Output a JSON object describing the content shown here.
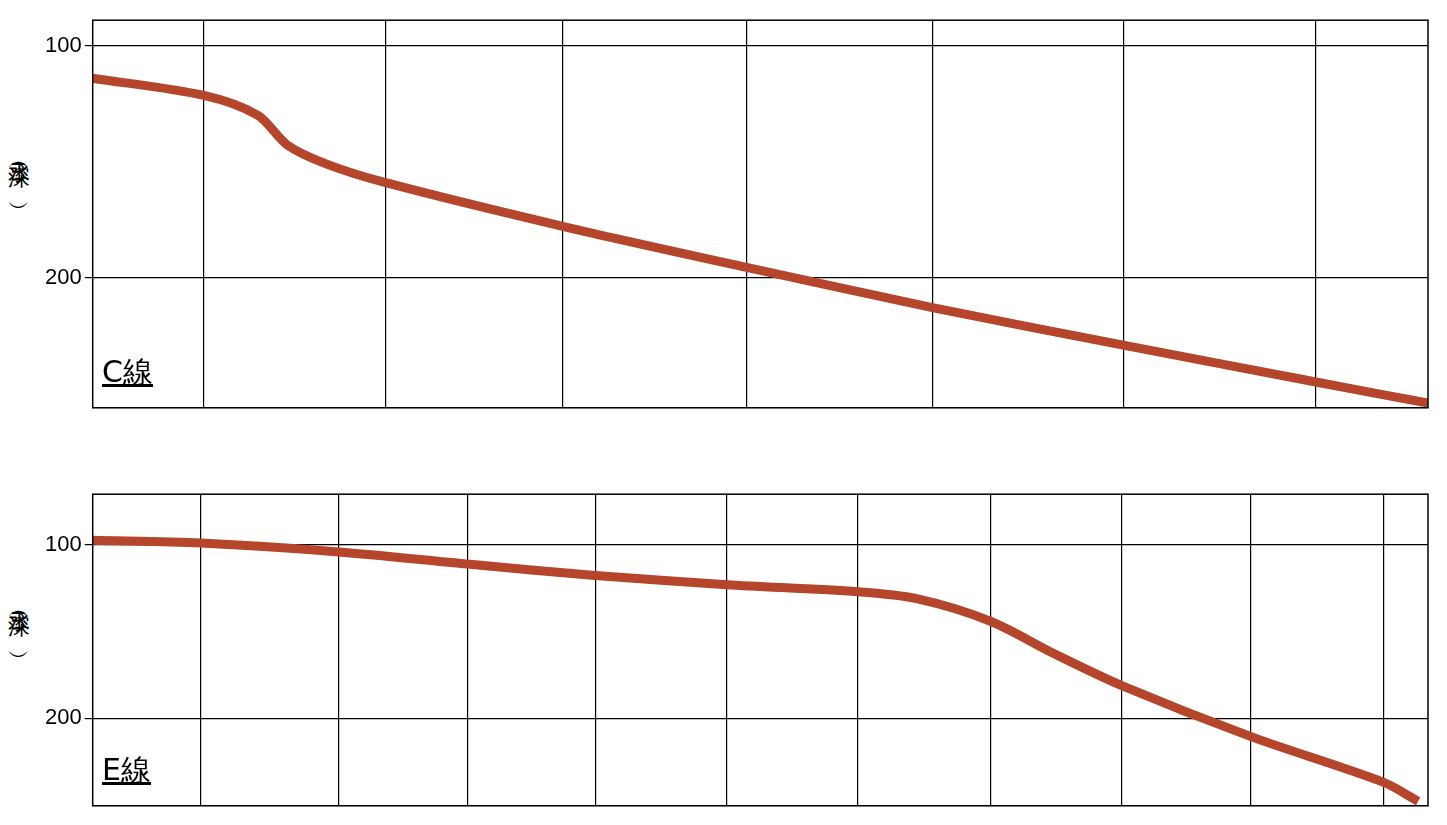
{
  "chart_data": [
    {
      "type": "line",
      "annotation": "C線",
      "y_label": "水深（m）",
      "x": [
        0,
        113,
        168,
        198,
        238,
        298,
        478,
        665,
        854,
        1048,
        1244,
        1358
      ],
      "values": [
        114,
        121.4,
        130,
        142.8,
        151,
        159,
        177.8,
        195.5,
        212.8,
        229,
        244.9,
        254
      ],
      "color": "#b5452b",
      "xlim": [
        0,
        1358
      ],
      "xticks": [
        113,
        298,
        478,
        665,
        854,
        1048,
        1244
      ],
      "ylim": [
        89,
        256
      ],
      "yticks": [
        100,
        200
      ],
      "grid": true,
      "tick_labels": "y"
    },
    {
      "type": "line",
      "annotation": "E線",
      "y_label": "水深（m）",
      "x": [
        0,
        110,
        250,
        381,
        511,
        645,
        778,
        838,
        913,
        978,
        1046,
        1178,
        1313,
        1348
      ],
      "values": [
        97.3,
        98.9,
        104,
        111,
        117.6,
        122.9,
        127,
        131,
        144,
        162.8,
        181,
        210.6,
        237,
        247.9
      ],
      "color": "#b5452b",
      "xlim": [
        0,
        1358
      ],
      "xticks": [
        110,
        250,
        381,
        511,
        645,
        778,
        913,
        1046,
        1178,
        1313
      ],
      "ylim": [
        70.7,
        250.5
      ],
      "yticks": [
        100,
        200
      ],
      "grid": true,
      "tick_labels": "y"
    }
  ]
}
